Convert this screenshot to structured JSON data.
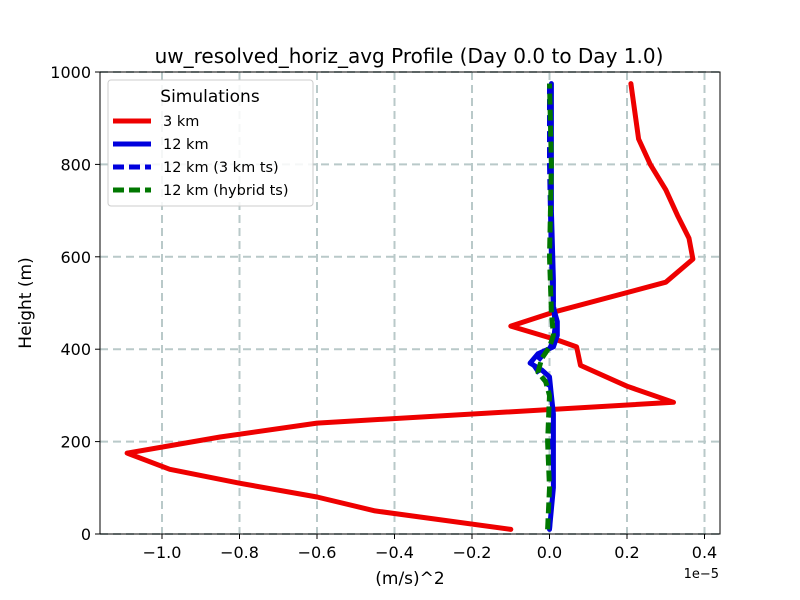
{
  "chart_data": {
    "type": "line",
    "title": "uw_resolved_horiz_avg Profile (Day 0.0 to Day 1.0)",
    "xlabel": "(m/s)^2",
    "ylabel": "Height (m)",
    "x_offset_label": "1e−5",
    "xlim": [
      -1.16,
      0.44
    ],
    "ylim": [
      0,
      1000
    ],
    "xticks": [
      -1.0,
      -0.8,
      -0.6,
      -0.4,
      -0.2,
      0.0,
      0.2,
      0.4
    ],
    "xtick_labels": [
      "−1.0",
      "−0.8",
      "−0.6",
      "−0.4",
      "−0.2",
      "0.0",
      "0.2",
      "0.4"
    ],
    "yticks": [
      0,
      200,
      400,
      600,
      800,
      1000
    ],
    "ytick_labels": [
      "0",
      "200",
      "400",
      "600",
      "800",
      "1000"
    ],
    "grid": true,
    "legend": {
      "title": "Simulations",
      "position": "top-left"
    },
    "series": [
      {
        "name": "3 km",
        "color": "#ee0000",
        "dash": "solid",
        "x": [
          -0.1,
          -0.45,
          -0.6,
          -0.8,
          -0.98,
          -1.09,
          -0.85,
          -0.6,
          0.32,
          0.2,
          0.08,
          0.07,
          0.02,
          -0.1,
          0.01,
          0.3,
          0.37,
          0.36,
          0.33,
          0.3,
          0.26,
          0.23,
          0.21
        ],
        "y": [
          10,
          50,
          80,
          110,
          140,
          175,
          210,
          240,
          285,
          320,
          365,
          405,
          420,
          450,
          480,
          545,
          595,
          640,
          690,
          745,
          800,
          855,
          975
        ]
      },
      {
        "name": "12 km",
        "color": "#0000dd",
        "dash": "solid",
        "x": [
          0.0,
          0.01,
          0.01,
          0.01,
          0.005,
          0.0,
          -0.02,
          -0.05,
          -0.03,
          0.01,
          0.02,
          0.02,
          0.01,
          0.01,
          0.005,
          0.005,
          0.005
        ],
        "y": [
          10,
          100,
          200,
          260,
          300,
          340,
          355,
          370,
          390,
          405,
          430,
          460,
          490,
          550,
          700,
          850,
          975
        ]
      },
      {
        "name": "12 km (3 km ts)",
        "color": "#0000dd",
        "dash": "dashed",
        "x": [
          0.0,
          0.005,
          0.0,
          0.005,
          0.0,
          -0.02,
          -0.04,
          -0.02,
          0.0,
          0.01,
          0.015,
          0.01,
          0.005,
          0.0,
          0.0
        ],
        "y": [
          10,
          100,
          200,
          280,
          320,
          340,
          365,
          385,
          400,
          420,
          450,
          500,
          600,
          800,
          975
        ]
      },
      {
        "name": "12 km (hybrid ts)",
        "color": "#007700",
        "dash": "dashed",
        "x": [
          -0.005,
          0.0,
          -0.005,
          0.0,
          -0.01,
          -0.03,
          -0.02,
          0.0,
          0.01,
          0.005,
          0.0,
          0.005,
          0.0
        ],
        "y": [
          10,
          100,
          200,
          300,
          330,
          350,
          380,
          405,
          430,
          480,
          600,
          800,
          975
        ]
      }
    ]
  }
}
